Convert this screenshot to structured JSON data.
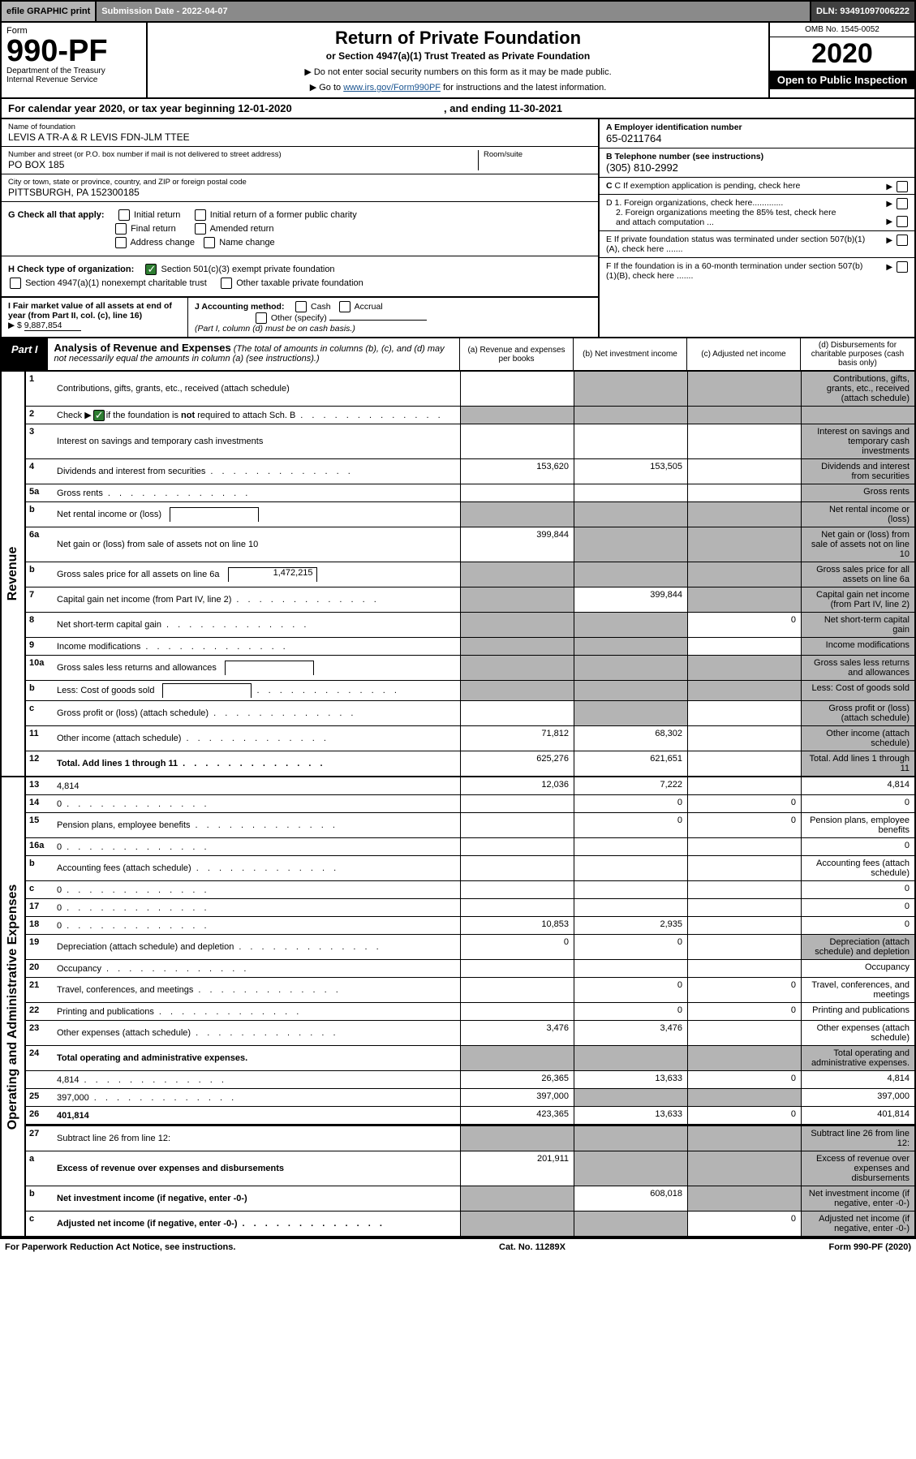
{
  "efile": {
    "print": "efile GRAPHIC print",
    "submission": "Submission Date - 2022-04-07",
    "dln": "DLN: 93491097006222"
  },
  "header": {
    "formword": "Form",
    "formnum": "990-PF",
    "dept": "Department of the Treasury",
    "irs": "Internal Revenue Service",
    "title": "Return of Private Foundation",
    "subtitle": "or Section 4947(a)(1) Trust Treated as Private Foundation",
    "instr1": "▶ Do not enter social security numbers on this form as it may be made public.",
    "instr2_pre": "▶ Go to ",
    "instr2_link": "www.irs.gov/Form990PF",
    "instr2_post": " for instructions and the latest information.",
    "omb": "OMB No. 1545-0052",
    "year": "2020",
    "open": "Open to Public Inspection"
  },
  "calyear": {
    "text_pre": "For calendar year 2020, or tax year beginning ",
    "begin": "12-01-2020",
    "text_mid": " , and ending ",
    "end": "11-30-2021"
  },
  "entity": {
    "name_lbl": "Name of foundation",
    "name": "LEVIS A TR-A & R LEVIS FDN-JLM TTEE",
    "addr_lbl": "Number and street (or P.O. box number if mail is not delivered to street address)",
    "addr": "PO BOX 185",
    "room_lbl": "Room/suite",
    "city_lbl": "City or town, state or province, country, and ZIP or foreign postal code",
    "city": "PITTSBURGH, PA  152300185",
    "A_lbl": "A Employer identification number",
    "A_val": "65-0211764",
    "B_lbl": "B Telephone number (see instructions)",
    "B_val": "(305) 810-2992",
    "C_lbl": "C If exemption application is pending, check here",
    "D1_lbl": "D 1. Foreign organizations, check here.............",
    "D2_lbl": "2. Foreign organizations meeting the 85% test, check here and attach computation ...",
    "E_lbl": "E  If private foundation status was terminated under section 507(b)(1)(A), check here .......",
    "F_lbl": "F  If the foundation is in a 60-month termination under section 507(b)(1)(B), check here .......",
    "G_lbl": "G Check all that apply:",
    "G_opts": [
      "Initial return",
      "Initial return of a former public charity",
      "Final return",
      "Amended return",
      "Address change",
      "Name change"
    ],
    "H_lbl": "H Check type of organization:",
    "H1": "Section 501(c)(3) exempt private foundation",
    "H2": "Section 4947(a)(1) nonexempt charitable trust",
    "H3": "Other taxable private foundation",
    "I_lbl": "I Fair market value of all assets at end of year (from Part II, col. (c), line 16)",
    "I_val": "9,887,854",
    "I_prefix": "▶ $",
    "J_lbl": "J Accounting method:",
    "J_opts": [
      "Cash",
      "Accrual"
    ],
    "J_other": "Other (specify)",
    "J_note": "(Part I, column (d) must be on cash basis.)"
  },
  "part1": {
    "tab": "Part I",
    "title": "Analysis of Revenue and Expenses",
    "note": "(The total of amounts in columns (b), (c), and (d) may not necessarily equal the amounts in column (a) (see instructions).)",
    "col_a": "(a)   Revenue and expenses per books",
    "col_b": "(b)   Net investment income",
    "col_c": "(c)   Adjusted net income",
    "col_d": "(d)   Disbursements for charitable purposes (cash basis only)"
  },
  "side": {
    "revenue": "Revenue",
    "expenses": "Operating and Administrative Expenses"
  },
  "rows": {
    "1": {
      "n": "1",
      "d": "Contributions, gifts, grants, etc., received (attach schedule)",
      "a": "",
      "b_shade": true,
      "c_shade": true,
      "d_shade": true
    },
    "2": {
      "n": "2",
      "d_pre": "Check ▶ ",
      "d_post": " if the foundation is not required to attach Sch. B",
      "checked": true,
      "dots": true,
      "a_shade": true,
      "b_shade": true,
      "c_shade": true,
      "d_shade": true
    },
    "3": {
      "n": "3",
      "d": "Interest on savings and temporary cash investments",
      "d_shade": true
    },
    "4": {
      "n": "4",
      "d": "Dividends and interest from securities",
      "dots": true,
      "a": "153,620",
      "b": "153,505",
      "d_shade": true
    },
    "5a": {
      "n": "5a",
      "d": "Gross rents",
      "dots": true,
      "d_shade": true
    },
    "5b": {
      "n": "b",
      "d": "Net rental income or (loss)",
      "inset": "",
      "a_shade": true,
      "b_shade": true,
      "c_shade": true,
      "d_shade": true
    },
    "6a": {
      "n": "6a",
      "d": "Net gain or (loss) from sale of assets not on line 10",
      "a": "399,844",
      "b_shade": true,
      "c_shade": true,
      "d_shade": true
    },
    "6b": {
      "n": "b",
      "d": "Gross sales price for all assets on line 6a",
      "inset": "1,472,215",
      "a_shade": true,
      "b_shade": true,
      "c_shade": true,
      "d_shade": true
    },
    "7": {
      "n": "7",
      "d": "Capital gain net income (from Part IV, line 2)",
      "dots": true,
      "a_shade": true,
      "b": "399,844",
      "c_shade": true,
      "d_shade": true
    },
    "8": {
      "n": "8",
      "d": "Net short-term capital gain",
      "dots": true,
      "a_shade": true,
      "b_shade": true,
      "c": "0",
      "d_shade": true
    },
    "9": {
      "n": "9",
      "d": "Income modifications",
      "dots": true,
      "a_shade": true,
      "b_shade": true,
      "d_shade": true
    },
    "10a": {
      "n": "10a",
      "d": "Gross sales less returns and allowances",
      "inset": "",
      "a_shade": true,
      "b_shade": true,
      "c_shade": true,
      "d_shade": true
    },
    "10b": {
      "n": "b",
      "d": "Less: Cost of goods sold",
      "dots": true,
      "inset": "",
      "a_shade": true,
      "b_shade": true,
      "c_shade": true,
      "d_shade": true
    },
    "10c": {
      "n": "c",
      "d": "Gross profit or (loss) (attach schedule)",
      "dots": true,
      "a_shade": false,
      "b_shade": true,
      "d_shade": true
    },
    "11": {
      "n": "11",
      "d": "Other income (attach schedule)",
      "dots": true,
      "a": "71,812",
      "b": "68,302",
      "d_shade": true
    },
    "12": {
      "n": "12",
      "d": "Total. Add lines 1 through 11",
      "bold": true,
      "dots": true,
      "a": "625,276",
      "b": "621,651",
      "d_shade": true
    },
    "13": {
      "n": "13",
      "d": "4,814",
      "a": "12,036",
      "b": "7,222"
    },
    "14": {
      "n": "14",
      "d": "0",
      "dots": true,
      "b": "0",
      "c": "0"
    },
    "15": {
      "n": "15",
      "d": "Pension plans, employee benefits",
      "dots": true,
      "b": "0",
      "c": "0"
    },
    "16a": {
      "n": "16a",
      "d": "0",
      "dots": true
    },
    "16b": {
      "n": "b",
      "d": "Accounting fees (attach schedule)",
      "dots": true
    },
    "16c": {
      "n": "c",
      "d": "0",
      "dots": true
    },
    "17": {
      "n": "17",
      "d": "0",
      "dots": true
    },
    "18": {
      "n": "18",
      "d": "0",
      "dots": true,
      "a": "10,853",
      "b": "2,935"
    },
    "19": {
      "n": "19",
      "d": "Depreciation (attach schedule) and depletion",
      "dots": true,
      "a": "0",
      "b": "0",
      "d_shade": true
    },
    "20": {
      "n": "20",
      "d": "Occupancy",
      "dots": true
    },
    "21": {
      "n": "21",
      "d": "Travel, conferences, and meetings",
      "dots": true,
      "b": "0",
      "c": "0"
    },
    "22": {
      "n": "22",
      "d": "Printing and publications",
      "dots": true,
      "b": "0",
      "c": "0"
    },
    "23": {
      "n": "23",
      "d": "Other expenses (attach schedule)",
      "dots": true,
      "a": "3,476",
      "b": "3,476"
    },
    "24": {
      "n": "24",
      "d": "Total operating and administrative expenses.",
      "bold": true,
      "a_shade": true,
      "b_shade": true,
      "c_shade": true,
      "d_shade": true
    },
    "24b": {
      "n": "",
      "d": "4,814",
      "dots": true,
      "a": "26,365",
      "b": "13,633",
      "c": "0"
    },
    "25": {
      "n": "25",
      "d": "397,000",
      "dots": true,
      "a": "397,000",
      "b_shade": true,
      "c_shade": true
    },
    "26": {
      "n": "26",
      "d": "401,814",
      "bold": true,
      "a": "423,365",
      "b": "13,633",
      "c": "0"
    },
    "27": {
      "n": "27",
      "d": "Subtract line 26 from line 12:",
      "a_shade": true,
      "b_shade": true,
      "c_shade": true,
      "d_shade": true
    },
    "27a": {
      "n": "a",
      "d": "Excess of revenue over expenses and disbursements",
      "bold": true,
      "a": "201,911",
      "b_shade": true,
      "c_shade": true,
      "d_shade": true
    },
    "27b": {
      "n": "b",
      "d": "Net investment income (if negative, enter -0-)",
      "bold": true,
      "a_shade": true,
      "b": "608,018",
      "c_shade": true,
      "d_shade": true
    },
    "27c": {
      "n": "c",
      "d": "Adjusted net income (if negative, enter -0-)",
      "bold": true,
      "dots": true,
      "a_shade": true,
      "b_shade": true,
      "c": "0",
      "d_shade": true
    }
  },
  "footer": {
    "left": "For Paperwork Reduction Act Notice, see instructions.",
    "mid": "Cat. No. 11289X",
    "right": "Form 990-PF (2020)"
  },
  "colors": {
    "shade": "#b4b4b4",
    "darkbar": "#404040",
    "midbar": "#8a8a8a",
    "link": "#1a5490",
    "check": "#2e7d32"
  }
}
